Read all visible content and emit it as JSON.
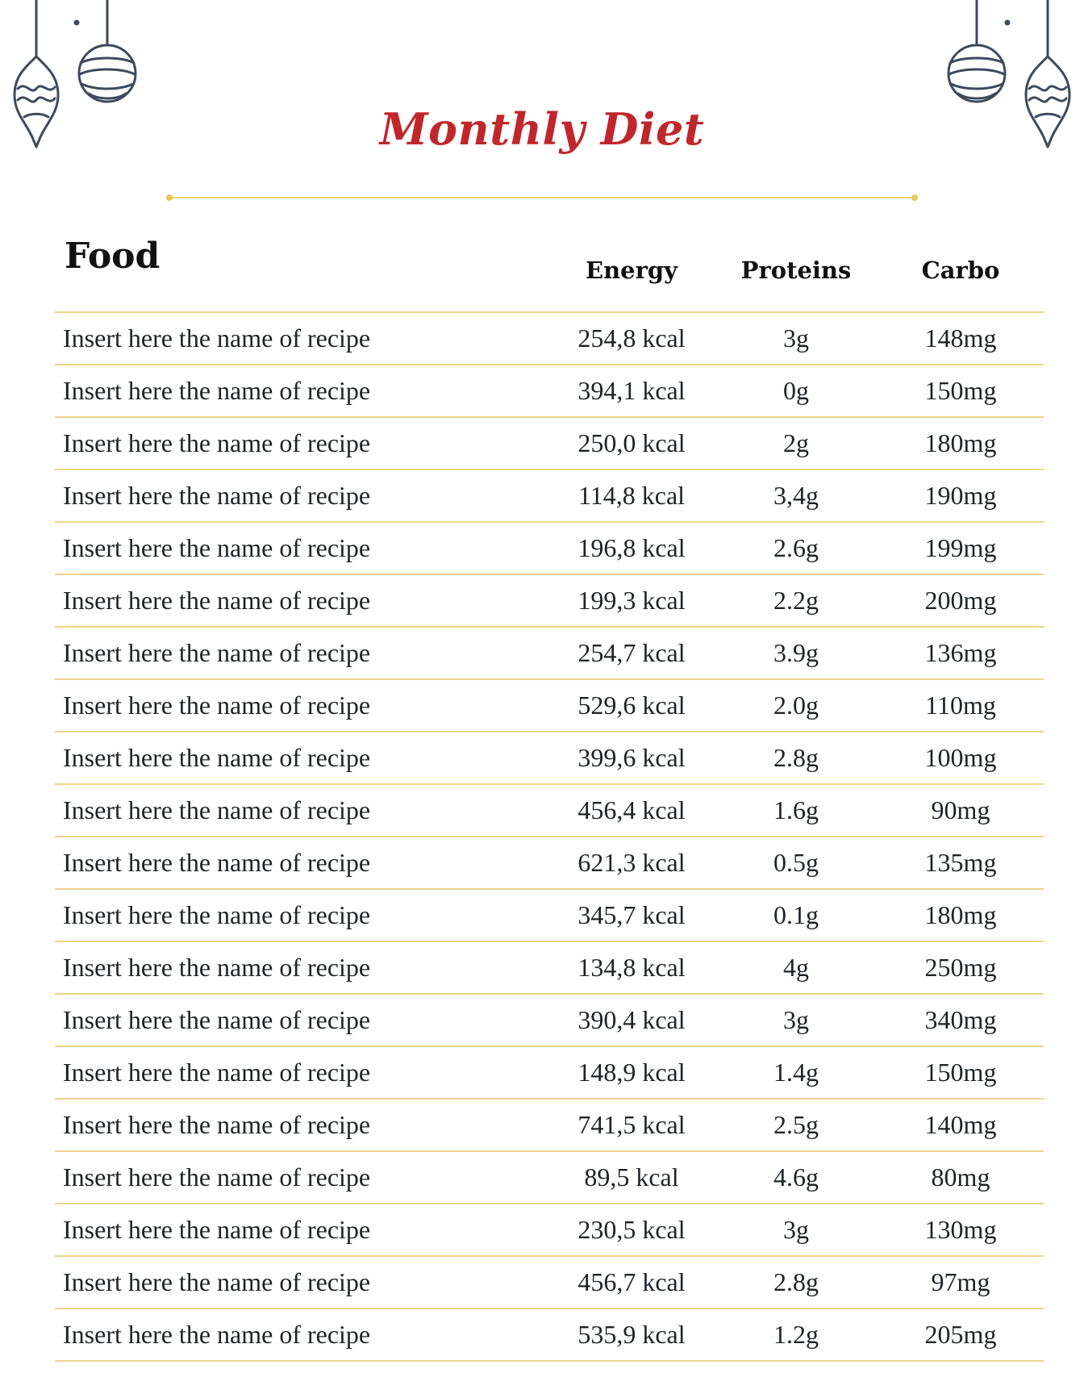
{
  "title": "Monthly Diet",
  "headers": {
    "food": "Food",
    "energy": "Energy",
    "proteins": "Proteins",
    "carbo": "Carbo"
  },
  "rows": [
    {
      "name": "Insert here the name of recipe",
      "energy": "254,8 kcal",
      "proteins": "3g",
      "carbo": "148mg"
    },
    {
      "name": "Insert here the name of recipe",
      "energy": "394,1 kcal",
      "proteins": "0g",
      "carbo": "150mg"
    },
    {
      "name": "Insert here the name of recipe",
      "energy": "250,0 kcal",
      "proteins": "2g",
      "carbo": "180mg"
    },
    {
      "name": "Insert here the name of recipe",
      "energy": "114,8 kcal",
      "proteins": "3,4g",
      "carbo": "190mg"
    },
    {
      "name": "Insert here the name of recipe",
      "energy": "196,8 kcal",
      "proteins": "2.6g",
      "carbo": "199mg"
    },
    {
      "name": "Insert here the name of recipe",
      "energy": "199,3 kcal",
      "proteins": "2.2g",
      "carbo": "200mg"
    },
    {
      "name": "Insert here the name of recipe",
      "energy": "254,7 kcal",
      "proteins": "3.9g",
      "carbo": "136mg"
    },
    {
      "name": "Insert here the name of recipe",
      "energy": "529,6 kcal",
      "proteins": "2.0g",
      "carbo": "110mg"
    },
    {
      "name": "Insert here the name of recipe",
      "energy": "399,6 kcal",
      "proteins": "2.8g",
      "carbo": "100mg"
    },
    {
      "name": "Insert here the name of recipe",
      "energy": "456,4 kcal",
      "proteins": "1.6g",
      "carbo": "90mg"
    },
    {
      "name": "Insert here the name of recipe",
      "energy": "621,3 kcal",
      "proteins": "0.5g",
      "carbo": "135mg"
    },
    {
      "name": "Insert here the name of recipe",
      "energy": "345,7 kcal",
      "proteins": "0.1g",
      "carbo": "180mg"
    },
    {
      "name": "Insert here the name of recipe",
      "energy": "134,8 kcal",
      "proteins": "4g",
      "carbo": "250mg"
    },
    {
      "name": "Insert here the name of recipe",
      "energy": "390,4 kcal",
      "proteins": "3g",
      "carbo": "340mg"
    },
    {
      "name": "Insert here the name of recipe",
      "energy": "148,9 kcal",
      "proteins": "1.4g",
      "carbo": "150mg"
    },
    {
      "name": "Insert here the name of recipe",
      "energy": "741,5 kcal",
      "proteins": "2.5g",
      "carbo": "140mg"
    },
    {
      "name": "Insert here the name of recipe",
      "energy": "89,5 kcal",
      "proteins": "4.6g",
      "carbo": "80mg"
    },
    {
      "name": "Insert here the name of recipe",
      "energy": "230,5 kcal",
      "proteins": "3g",
      "carbo": "130mg"
    },
    {
      "name": "Insert here the name of recipe",
      "energy": "456,7 kcal",
      "proteins": "2.8g",
      "carbo": "97mg"
    },
    {
      "name": "Insert here the name of recipe",
      "energy": "535,9 kcal",
      "proteins": "1.2g",
      "carbo": "205mg"
    }
  ],
  "colors": {
    "title": "#c0272d",
    "rule": "#ecd48a",
    "ornament": "#3c4a5c"
  }
}
